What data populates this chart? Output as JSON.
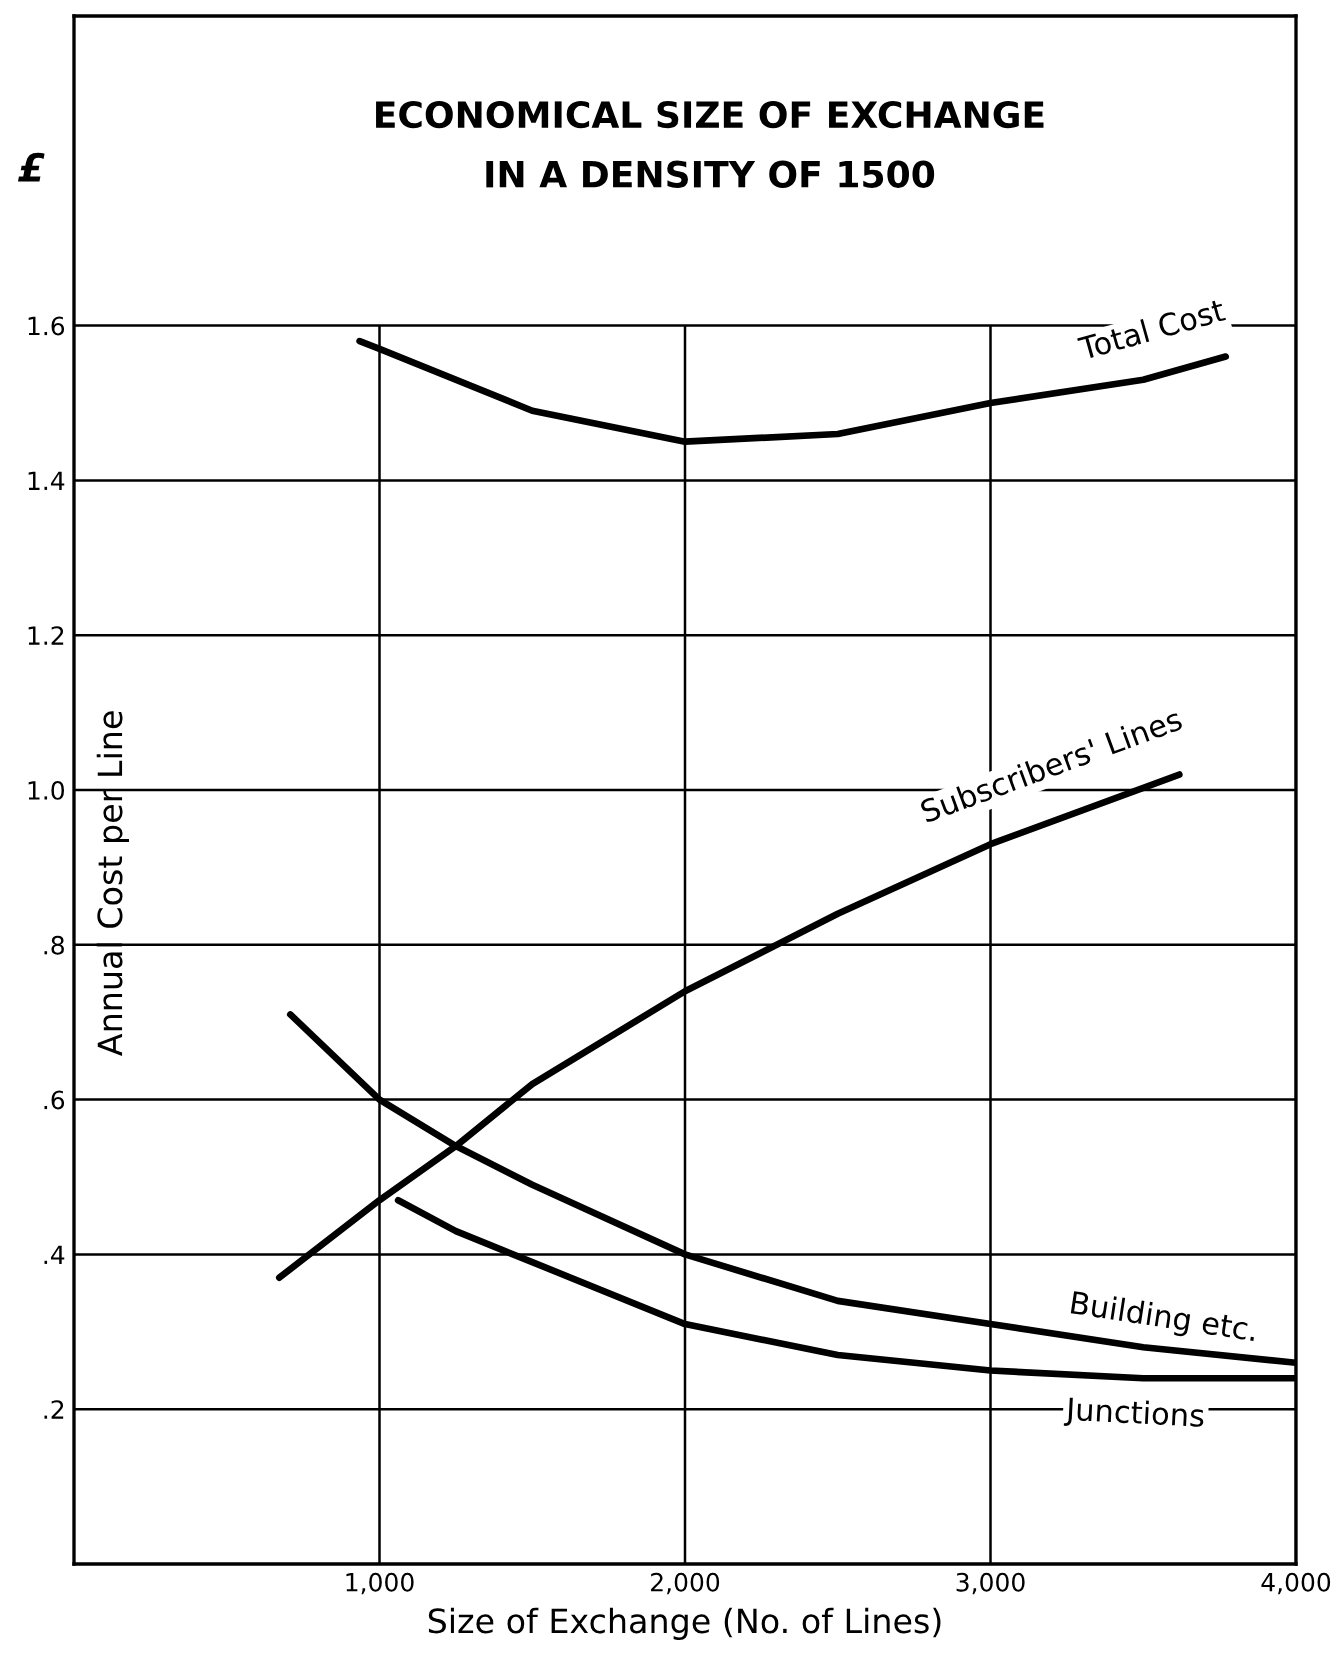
{
  "chart_data": {
    "type": "line",
    "title": "ECONOMICAL SIZE OF EXCHANGE\nIN A DENSITY OF 1500",
    "xlabel": "Size of Exchange (No. of Lines)",
    "ylabel": "Annual Cost per Line",
    "annotations": [
      "£"
    ],
    "xlim": [
      0,
      4000
    ],
    "xticks": [
      {
        "value": 1000,
        "label": "1,000"
      },
      {
        "value": 2000,
        "label": "2,000"
      },
      {
        "value": 3000,
        "label": "3,000"
      },
      {
        "value": 4000,
        "label": "4,000"
      }
    ],
    "ylim": [
      0,
      2.0
    ],
    "yticks": [
      {
        "value": 0.2,
        "label": ".2"
      },
      {
        "value": 0.4,
        "label": ".4"
      },
      {
        "value": 0.6,
        "label": ".6"
      },
      {
        "value": 0.8,
        "label": ".8"
      },
      {
        "value": 1.0,
        "label": "1.0"
      },
      {
        "value": 1.2,
        "label": "1.2"
      },
      {
        "value": 1.4,
        "label": "1.4"
      },
      {
        "value": 1.6,
        "label": "1.6"
      }
    ],
    "grid": true,
    "legend": false,
    "marker": "none",
    "line_style": "solid",
    "series": [
      {
        "name": "Total Cost",
        "color": "#000000",
        "x": [
          935,
          1000,
          1500,
          2000,
          2500,
          3000,
          3500,
          3770
        ],
        "values": [
          1.58,
          1.57,
          1.49,
          1.45,
          1.46,
          1.5,
          1.53,
          1.56
        ]
      },
      {
        "name": "Subscribers' Lines",
        "color": "#000000",
        "x": [
          672,
          1000,
          1250,
          1500,
          2000,
          2500,
          3000,
          3618
        ],
        "values": [
          0.37,
          0.47,
          0.54,
          0.62,
          0.74,
          0.84,
          0.93,
          1.02
        ]
      },
      {
        "name": "Building etc.",
        "color": "#000000",
        "x": [
          708,
          1000,
          1250,
          1500,
          2000,
          2500,
          3000,
          3500,
          4000
        ],
        "values": [
          0.71,
          0.6,
          0.54,
          0.49,
          0.4,
          0.34,
          0.31,
          0.28,
          0.26
        ]
      },
      {
        "name": "Junctions",
        "color": "#000000",
        "x": [
          1061,
          1250,
          1500,
          2000,
          2500,
          3000,
          3500,
          4000
        ],
        "values": [
          0.47,
          0.43,
          0.39,
          0.31,
          0.27,
          0.25,
          0.24,
          0.24
        ]
      }
    ]
  }
}
